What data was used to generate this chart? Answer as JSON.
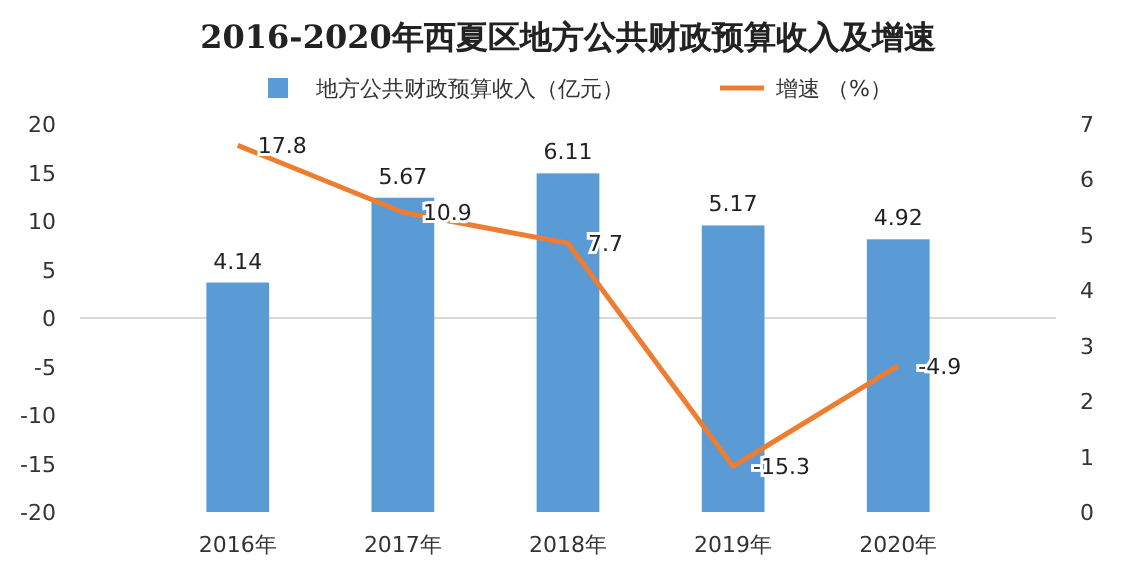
{
  "chart_data": {
    "type": "bar",
    "title": "2016-2020年西夏区地方公共财政预算收入及增速",
    "categories": [
      "2016年",
      "2017年",
      "2018年",
      "2019年",
      "2020年"
    ],
    "series": [
      {
        "name": "地方公共财政预算收入（亿元）",
        "axis": "y2",
        "color": "#5b9bd5",
        "values": [
          4.14,
          5.67,
          6.11,
          5.17,
          4.92
        ]
      },
      {
        "name": "增速 （%）",
        "type": "line",
        "axis": "y",
        "color": "#ed7d31",
        "values": [
          17.8,
          10.9,
          7.7,
          -15.3,
          -4.9
        ]
      }
    ],
    "ylim": [
      -20,
      20
    ],
    "yticks": [
      -20,
      -15,
      -10,
      -5,
      0,
      5,
      10,
      15,
      20
    ],
    "y2lim": [
      0,
      7
    ],
    "y2ticks": [
      0,
      1,
      2,
      3,
      4,
      5,
      6,
      7
    ],
    "ref_lines": [
      {
        "axis": "y",
        "value": 0,
        "color": "#d9d9d9"
      }
    ],
    "data_labels": true,
    "legend": "top",
    "grid": false,
    "marker": "none",
    "line_style": "solid"
  }
}
